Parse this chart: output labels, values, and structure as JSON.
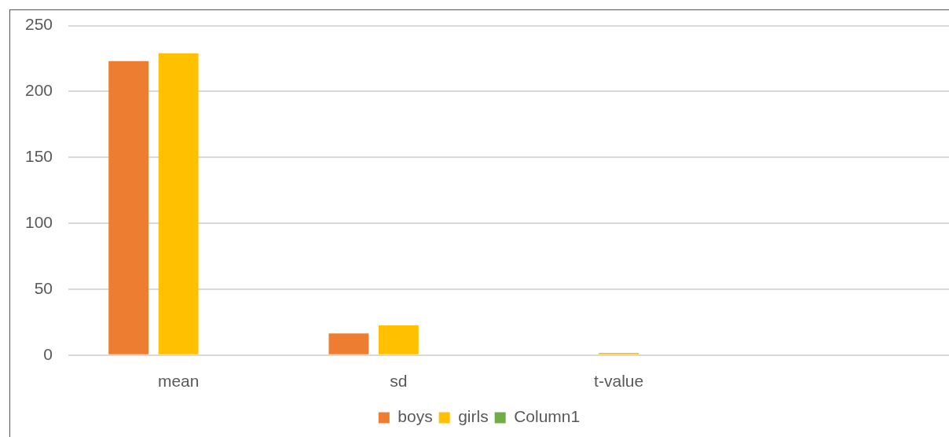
{
  "chart_data": {
    "type": "bar",
    "categories": [
      "mean",
      "sd",
      "t-value",
      null
    ],
    "series": [
      {
        "name": "boys",
        "color": "#ed7d31",
        "values": [
          223,
          16.5,
          null,
          null
        ]
      },
      {
        "name": "girls",
        "color": "#ffc000",
        "values": [
          229,
          22.5,
          1.6,
          null
        ]
      },
      {
        "name": "Column1",
        "color": "#70ad47",
        "values": [
          null,
          null,
          null,
          null
        ]
      }
    ],
    "ylim": [
      0,
      250
    ],
    "yticks": [
      0,
      50,
      100,
      150,
      200,
      250
    ],
    "grid": "y",
    "legend": "bottom"
  }
}
